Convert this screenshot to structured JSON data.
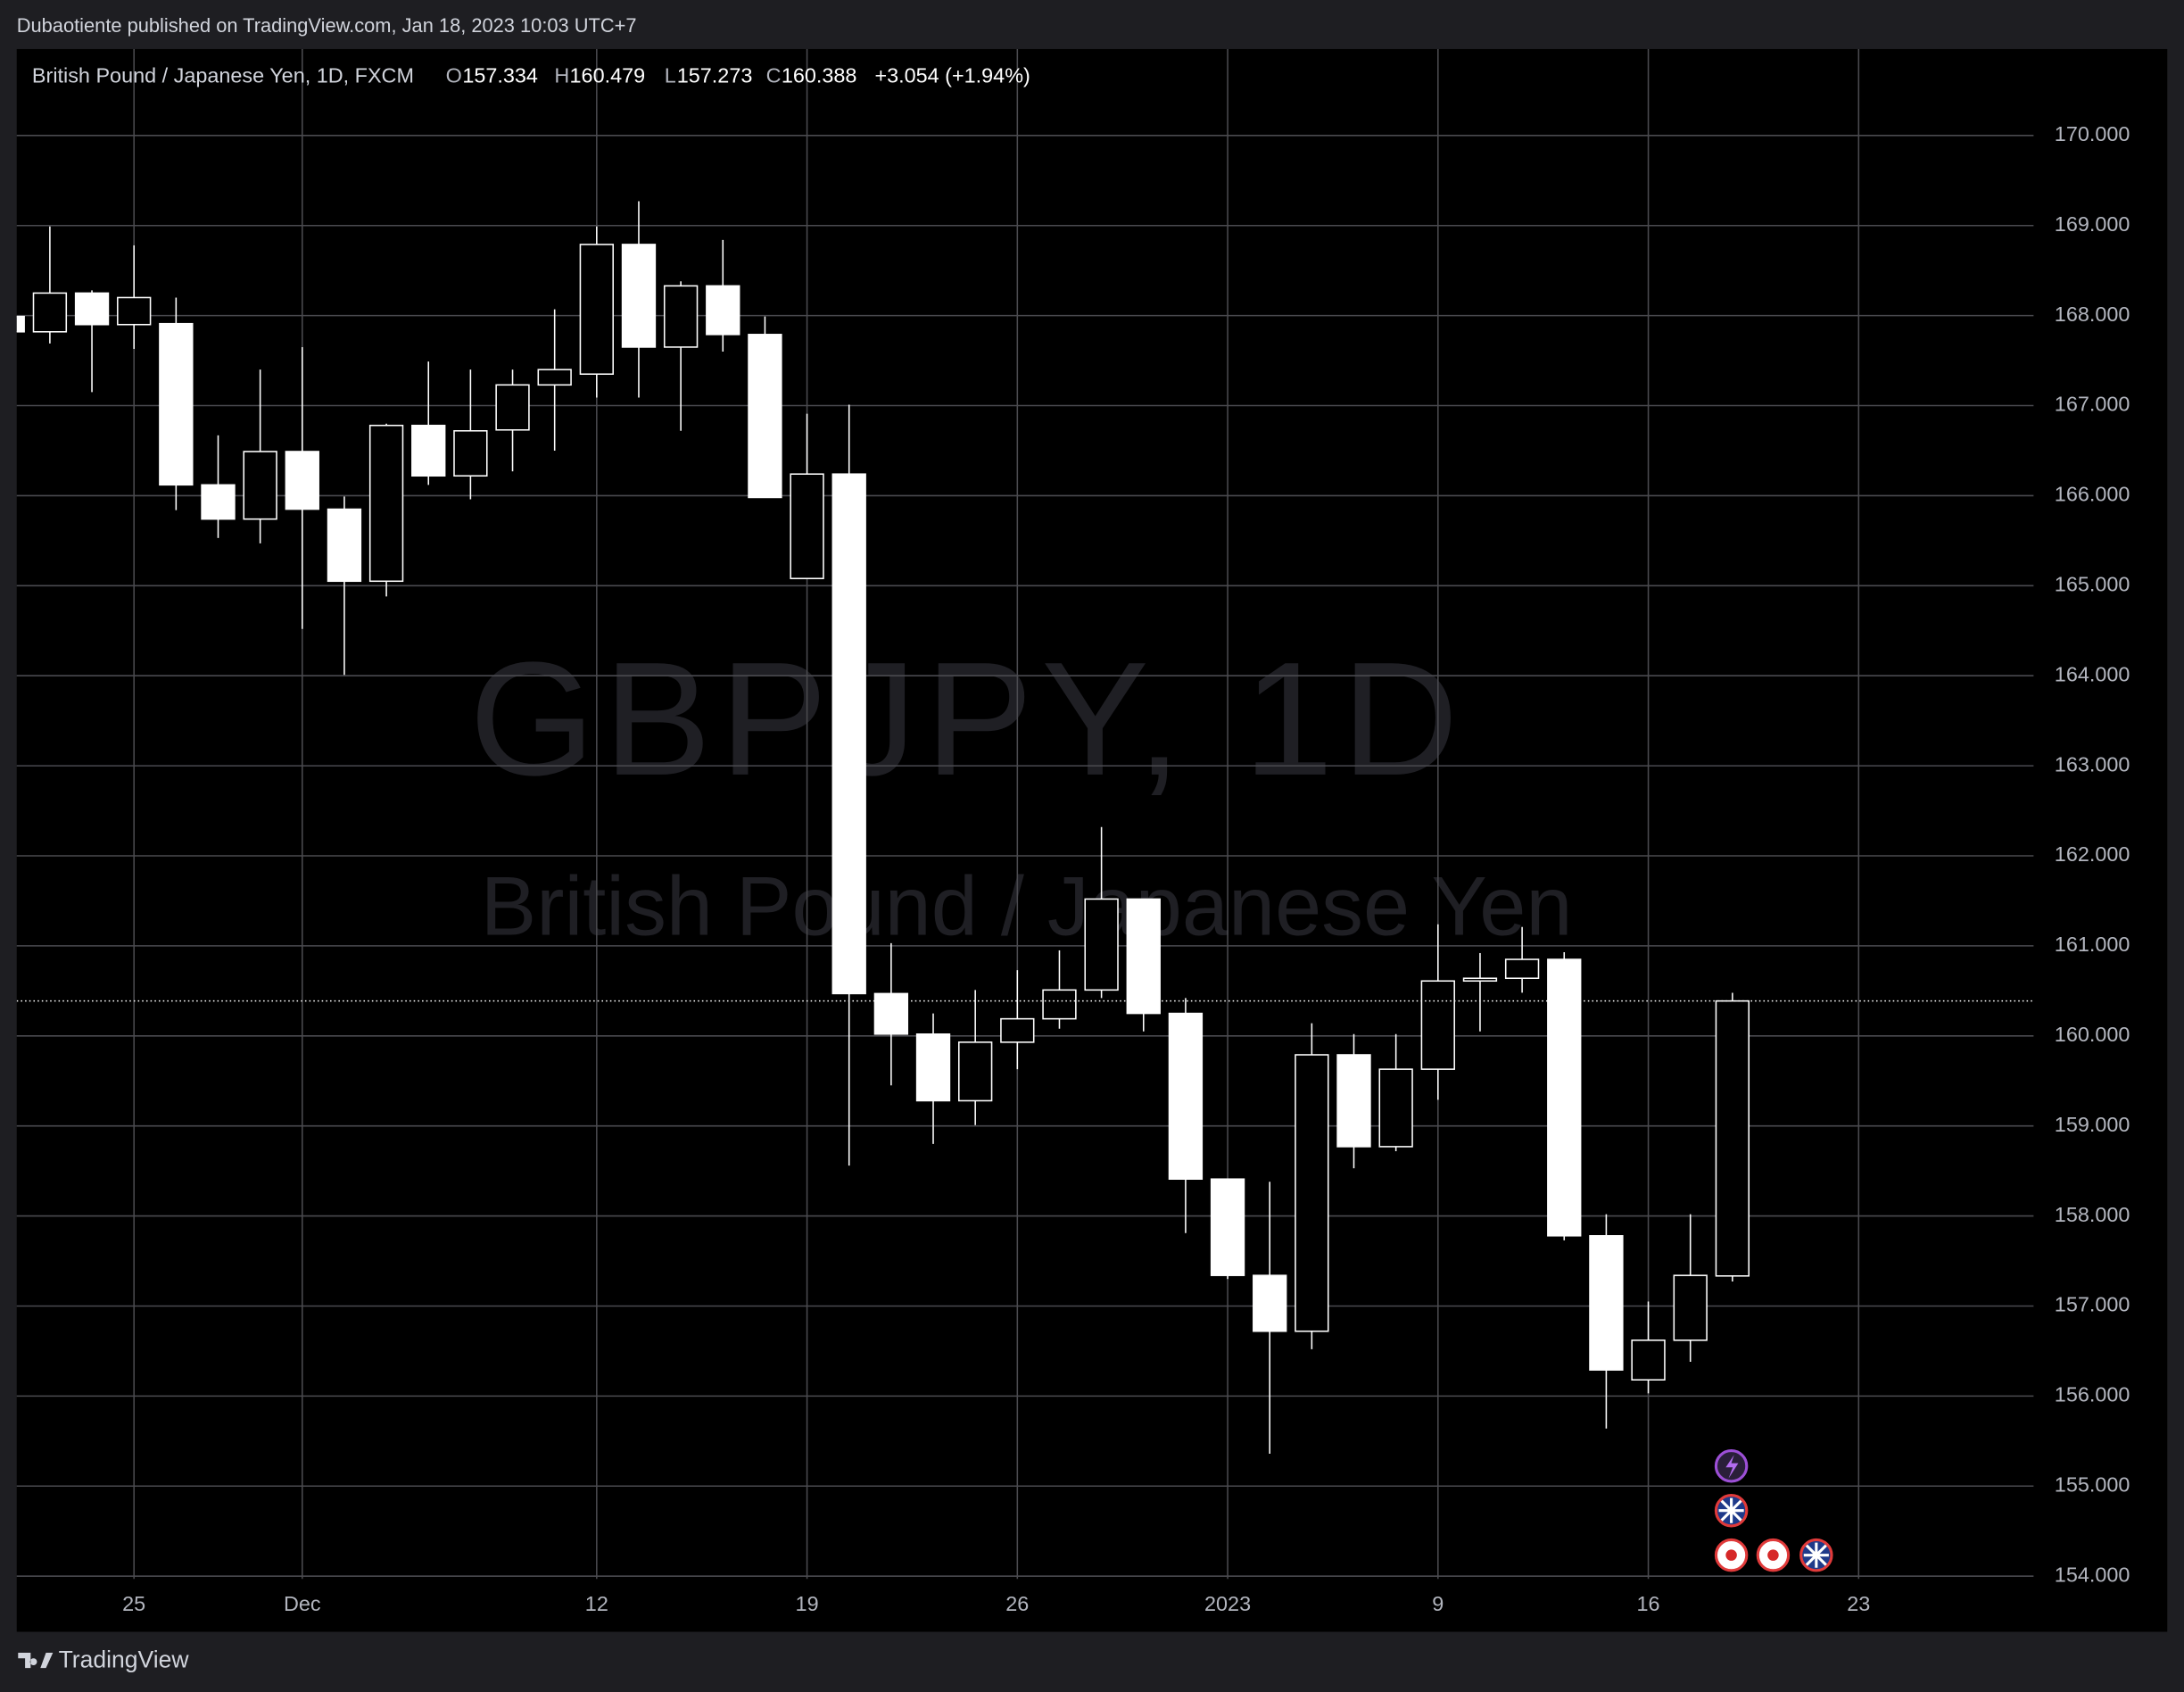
{
  "published": "Dubaotiente published on TradingView.com, Jan 18, 2023 10:03 UTC+7",
  "footer": "TradingView",
  "chart_data": {
    "type": "candlestick",
    "title": "British Pound / Japanese Yen, 1D, FXCM",
    "ohlc_legend": [
      {
        "label": "O",
        "value": "157.334"
      },
      {
        "label": "H",
        "value": "160.479"
      },
      {
        "label": "L",
        "value": "157.273"
      },
      {
        "label": "C",
        "value": "160.388"
      }
    ],
    "change": "+3.054 (+1.94%)",
    "watermark": "GBPJPY, 1D",
    "watermark_subtitle": "British Pound / Japanese Yen",
    "categories": [
      null,
      null,
      null,
      "25",
      null,
      null,
      null,
      "Dec",
      null,
      null,
      null,
      null,
      null,
      null,
      "12",
      null,
      null,
      null,
      null,
      "19",
      null,
      null,
      null,
      null,
      "26",
      null,
      null,
      null,
      null,
      "2023",
      null,
      null,
      null,
      null,
      "9",
      null,
      null,
      null,
      null,
      "16",
      null,
      null,
      null,
      null,
      "23"
    ],
    "open": [
      167.99,
      167.82,
      168.25,
      167.9,
      167.91,
      166.12,
      165.74,
      166.49,
      165.85,
      165.05,
      166.78,
      166.22,
      166.73,
      167.23,
      167.35,
      168.79,
      167.65,
      168.33,
      167.79,
      165.08,
      166.24,
      160.47,
      160.02,
      159.28,
      159.93,
      160.19,
      160.51,
      161.52,
      160.25,
      158.41,
      157.34,
      156.72,
      159.79,
      158.77,
      159.63,
      160.61,
      160.64,
      160.85,
      157.78,
      156.18,
      156.62,
      157.334,
      null,
      null,
      null
    ],
    "high": [
      168.1,
      168.99,
      168.28,
      168.78,
      168.2,
      166.67,
      167.4,
      167.65,
      165.99,
      166.8,
      167.49,
      167.4,
      167.4,
      168.07,
      168.99,
      169.27,
      168.38,
      168.84,
      167.99,
      166.91,
      167.01,
      161.03,
      160.25,
      160.51,
      160.73,
      160.95,
      162.32,
      161.52,
      160.42,
      158.41,
      158.38,
      160.14,
      160.02,
      160.02,
      161.24,
      160.92,
      161.21,
      160.93,
      158.02,
      157.05,
      158.02,
      160.479,
      null,
      null,
      null
    ],
    "low": [
      167.7,
      167.69,
      167.15,
      167.63,
      165.84,
      165.53,
      165.47,
      164.52,
      164.01,
      164.88,
      166.12,
      165.96,
      166.27,
      166.5,
      167.09,
      167.09,
      166.72,
      167.6,
      165.98,
      165.08,
      158.56,
      159.45,
      158.8,
      159.01,
      159.63,
      160.08,
      160.42,
      160.05,
      157.81,
      157.3,
      155.36,
      156.52,
      158.53,
      158.72,
      159.29,
      160.05,
      160.48,
      157.73,
      155.64,
      156.03,
      156.38,
      157.273,
      null,
      null,
      null
    ],
    "close": [
      167.82,
      168.25,
      167.9,
      168.2,
      166.12,
      165.74,
      166.49,
      165.85,
      165.05,
      166.78,
      166.22,
      166.72,
      167.23,
      167.4,
      168.79,
      167.65,
      168.33,
      167.79,
      165.98,
      166.24,
      160.47,
      160.02,
      159.28,
      159.93,
      160.19,
      160.51,
      161.52,
      160.25,
      158.41,
      157.34,
      156.72,
      159.79,
      158.77,
      159.63,
      160.61,
      160.64,
      160.85,
      157.78,
      156.29,
      156.62,
      157.34,
      160.388,
      null,
      null,
      null
    ],
    "up_color": "#000000",
    "down_color": "#ffffff",
    "wick_color": "#ffffff",
    "ylim": [
      153.97,
      170.96
    ],
    "yticks": [
      {
        "value": 154,
        "label": "154.000"
      },
      {
        "value": 155,
        "label": "155.000"
      },
      {
        "value": 156,
        "label": "156.000"
      },
      {
        "value": 157,
        "label": "157.000"
      },
      {
        "value": 158,
        "label": "158.000"
      },
      {
        "value": 159,
        "label": "159.000"
      },
      {
        "value": 160,
        "label": "160.000"
      },
      {
        "value": 161,
        "label": "161.000"
      },
      {
        "value": 162,
        "label": "162.000"
      },
      {
        "value": 163,
        "label": "163.000"
      },
      {
        "value": 164,
        "label": "164.000"
      },
      {
        "value": 165,
        "label": "165.000"
      },
      {
        "value": 166,
        "label": "166.000"
      },
      {
        "value": 167,
        "label": "167.000"
      },
      {
        "value": 168,
        "label": "168.000"
      },
      {
        "value": 169,
        "label": "169.000"
      },
      {
        "value": 170,
        "label": "170.000"
      }
    ],
    "grid": true
  }
}
